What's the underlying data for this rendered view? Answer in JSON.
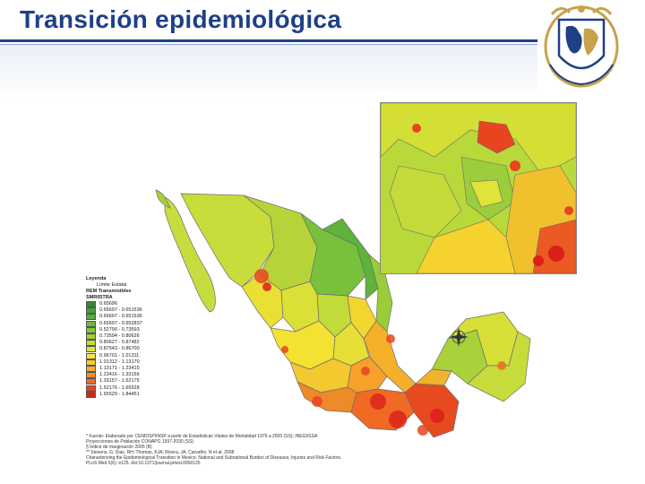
{
  "header": {
    "title": "Transición epidemiológica"
  },
  "logo": {
    "icon": "university-shield-icon",
    "colors": [
      "#c8a24a",
      "#1f3f86"
    ]
  },
  "legend": {
    "title": "Leyenda",
    "boundary_label": "Límite Estatal",
    "layer_label": "REM Transmisibles",
    "field_label": "SMR05TRA",
    "classes": [
      {
        "label": "0.65696",
        "color": "#2e8b2e"
      },
      {
        "label": "0.65697 - 0.651536",
        "color": "#3fa03a"
      },
      {
        "label": "0.65697 - 0.651536",
        "color": "#53ad3b"
      },
      {
        "label": "0.65697 - 0.652837",
        "color": "#6bbb3a"
      },
      {
        "label": "0.52790 - 0.73593",
        "color": "#86c83b"
      },
      {
        "label": "0.73594 - 0.80626",
        "color": "#a3d13a"
      },
      {
        "label": "0.80627 - 0.87482",
        "color": "#c0db38"
      },
      {
        "label": "0.87543 - 0.86700",
        "color": "#dbe535"
      },
      {
        "label": "0.96701 - 1.01311",
        "color": "#f4e830"
      },
      {
        "label": "1.01312 - 1.13170",
        "color": "#f8cc2c"
      },
      {
        "label": "1.13171 - 1.23415",
        "color": "#f7ae2a"
      },
      {
        "label": "1.23416 - 1.33156",
        "color": "#f48e28"
      },
      {
        "label": "1.33157 - 1.52175",
        "color": "#f06a24"
      },
      {
        "label": "1.52176 - 1.65528",
        "color": "#e84420"
      },
      {
        "label": "1.65529 - 1.84451",
        "color": "#dc1f1a"
      }
    ]
  },
  "notes": [
    "*  Fuente: Elaborado por CENIDSP/INSP a partir de Estadísticas Vitales de Mortalidad 1979 a 2005 (SS); INEGI/SSA",
    "   Proyecciones de Población CONAPO 1997-2030 (SS)",
    "  § Índice de marginación 2005 (B)",
    "**  Stevens, G; Dias, RH; Thomas, KJA; Rivera, JA; Carvalho, N et al. 2008",
    "   Characterizing the Epidemiological Transition in Mexico: National and Subnational Burden of Diseases, Injuries and Risk Factors.",
    "   PLoS Med 5(6): e125. doi:10.1371/journal.pmed.0050125"
  ]
}
